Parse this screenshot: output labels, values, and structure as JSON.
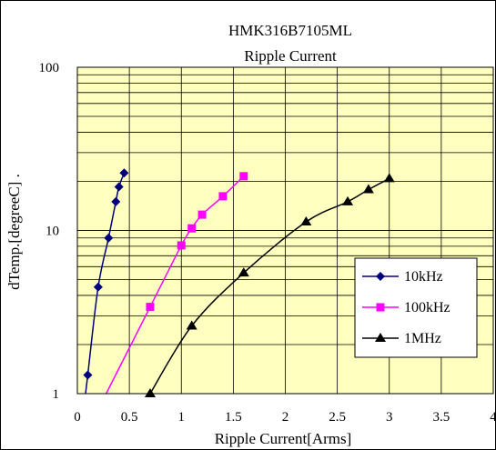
{
  "chart_data": {
    "type": "line",
    "title": "HMK316B7105ML",
    "subtitle": "Ripple Current",
    "xlabel": "Ripple Current[Arms]",
    "ylabel": "dTemp.[degreeC] .",
    "xlim": [
      0,
      4
    ],
    "ylim": [
      1,
      100
    ],
    "yscale": "log",
    "x_ticks": [
      "0",
      "0.5",
      "1",
      "1.5",
      "2",
      "2.5",
      "3",
      "3.5",
      "4"
    ],
    "y_ticks": [
      "1",
      "10",
      "100"
    ],
    "grid": true,
    "plot_background": "#ffffc0",
    "legend_position": "right, lower-middle",
    "series": [
      {
        "name": "10kHz",
        "color": "#00007f",
        "marker": "diamond",
        "x": [
          0.1,
          0.2,
          0.3,
          0.37,
          0.4,
          0.45
        ],
        "y": [
          1.3,
          4.5,
          9,
          15,
          18.5,
          22.5
        ]
      },
      {
        "name": "100kHz",
        "color": "#ff00ff",
        "marker": "square",
        "x": [
          0.7,
          1.0,
          1.1,
          1.2,
          1.4,
          1.6
        ],
        "y": [
          3.4,
          8.1,
          10.3,
          12.5,
          16.2,
          21.5
        ]
      },
      {
        "name": "1MHz",
        "color": "#000000",
        "marker": "triangle",
        "x": [
          0.7,
          1.1,
          1.6,
          2.2,
          2.6,
          2.8,
          3.0
        ],
        "y": [
          1.0,
          2.6,
          5.5,
          11.3,
          15,
          17.8,
          20.8
        ]
      }
    ]
  }
}
